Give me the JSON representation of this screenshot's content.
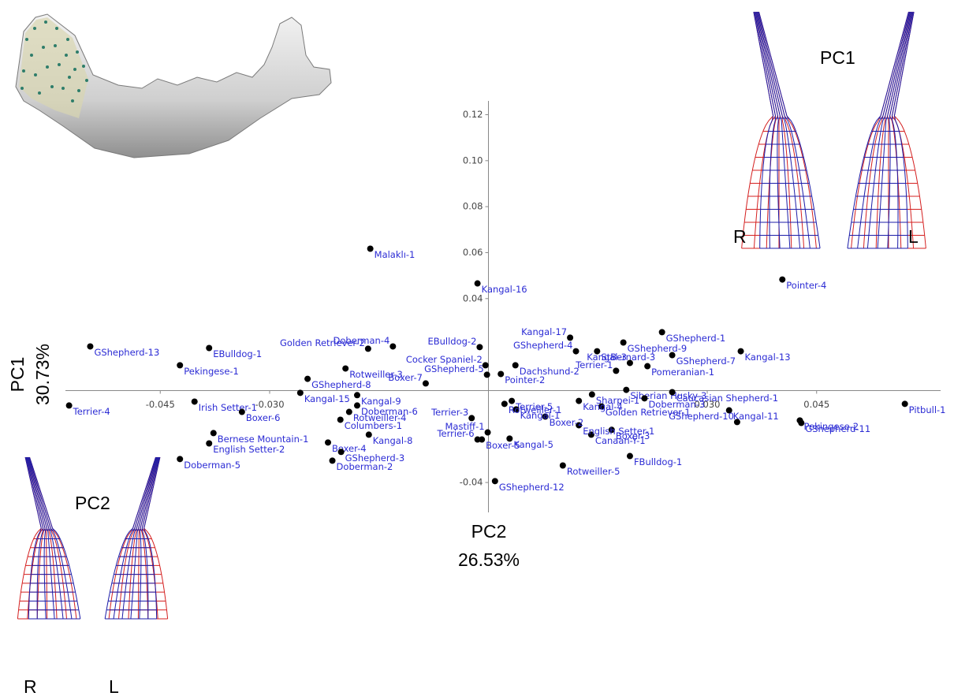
{
  "chart_data": {
    "type": "scatter",
    "xlabel": "PC2",
    "xlabel_variance": "26.53%",
    "ylabel": "PC1",
    "ylabel_variance": "30.73%",
    "xlim": [
      -0.058,
      0.062
    ],
    "ylim": [
      -0.053,
      0.126
    ],
    "xticks": [
      -0.045,
      {
        "value": -0.03,
        "label": "-0.030"
      },
      {
        "value": 0.03,
        "label": "0.030"
      },
      0.045
    ],
    "yticks": [
      0.12,
      {
        "value": 0.1,
        "label": "0.10"
      },
      0.08,
      0.06,
      0.04,
      -0.04
    ],
    "color": "#000000",
    "label_color": "#2b2bd4",
    "point_labels": [
      "Malaklı-1",
      "Kangal-16",
      "Pointer-4",
      "GShepherd-13",
      "EBulldog-1",
      "Pekingese-1",
      "Terrier-4",
      "Irish Setter-1",
      "Boxer-6",
      "Bernese Mountain-1",
      "English Setter-2",
      "Doberman-5",
      "Doberman-4",
      "Golden Retriever-2",
      "Rotweiller-3",
      "GShepherd-8",
      "Kangal-15",
      "Kangal-9",
      "Doberman-6",
      "Rotweiller-4",
      "Columbers-1",
      "Kangal-8",
      "Boxer-4",
      "GShepherd-3",
      "Doberman-2",
      "Boxer-7",
      "EBulldog-2",
      "Cocker Spaniel-2",
      "GShepherd-5",
      "Dachshund-2",
      "Pointer-2",
      "Kangal-17",
      "GShepherd-9",
      "GShepherd-4",
      "StBernard-3",
      "GShepherd-1",
      "GShepherd-7",
      "Kangal-13",
      "Kangal-3",
      "Pomeranian-1",
      "Terrier-1",
      "Siberian Husky-3",
      "Caucasian Shepherd-1",
      "Doberman-3",
      "Golden Retriever-1",
      "Kangal-11",
      "GShepherd-10",
      "Pekingese-2",
      "GShepherd-11",
      "Pitbull-1",
      "Boxer-3",
      "Canaan-Y-1",
      "English Setter-1",
      "Boxer-2",
      "FBulldog-1",
      "Rotweiller-5",
      "GShepherd-12",
      "Kangal-5",
      "Boxer-5",
      "Terrier-6",
      "Mastiff-1",
      "Terrier-3",
      "Terrier-5",
      "Kangal-1",
      "Rotweiller-1",
      "Sharpei-1",
      "Kangal-4"
    ],
    "x": [
      -0.0162,
      -0.0015,
      0.0403,
      -0.0546,
      -0.0383,
      -0.0423,
      -0.0575,
      -0.0403,
      -0.0338,
      -0.0377,
      -0.0383,
      -0.0423,
      -0.0131,
      -0.0165,
      -0.0196,
      -0.0248,
      -0.0258,
      -0.018,
      -0.018,
      -0.0191,
      -0.0203,
      -0.0164,
      -0.022,
      -0.0202,
      -0.0214,
      -0.0086,
      -0.0012,
      -0.0004,
      -0.0002,
      0.0037,
      0.0017,
      0.0112,
      0.0185,
      0.012,
      0.0149,
      0.0238,
      0.0252,
      0.0346,
      0.0194,
      0.0218,
      0.0175,
      0.0189,
      0.0252,
      0.0214,
      0.0155,
      0.033,
      0.0341,
      0.0427,
      0.0429,
      0.0571,
      0.0169,
      0.0141,
      0.0124,
      0.0078,
      0.0194,
      0.0102,
      0.0009,
      0.0029,
      -0.0009,
      -0.0015,
      -0.0001,
      -0.0023,
      0.0032,
      0.0038,
      0.0022,
      0.0142,
      0.0124
    ],
    "values": [
      0.0617,
      0.0466,
      0.0483,
      0.0192,
      0.0185,
      0.011,
      -0.0065,
      -0.0048,
      -0.0093,
      -0.0185,
      -0.023,
      -0.0298,
      0.0192,
      0.0182,
      0.0096,
      0.0051,
      -0.001,
      -0.002,
      -0.0065,
      -0.0093,
      -0.0127,
      -0.0192,
      -0.0226,
      -0.0267,
      -0.0305,
      0.0031,
      0.0189,
      0.011,
      0.0069,
      0.011,
      0.0072,
      0.023,
      0.0209,
      0.0171,
      0.0171,
      0.0254,
      0.0154,
      0.0171,
      0.012,
      0.0106,
      0.0086,
      0.0003,
      -0.0007,
      -0.0034,
      -0.0069,
      -0.0086,
      -0.0137,
      -0.013,
      -0.0141,
      -0.0058,
      -0.0171,
      -0.0192,
      -0.0151,
      -0.0113,
      -0.0285,
      -0.0326,
      -0.0394,
      -0.0209,
      -0.0213,
      -0.0213,
      -0.0182,
      -0.012,
      -0.0045,
      -0.0082,
      -0.0058,
      -0.0017,
      -0.0045
    ]
  },
  "diagrams": {
    "pc1": {
      "title": "PC1",
      "left": "R",
      "right": "L"
    },
    "pc2": {
      "title": "PC2",
      "left": "R",
      "right": "L"
    }
  }
}
